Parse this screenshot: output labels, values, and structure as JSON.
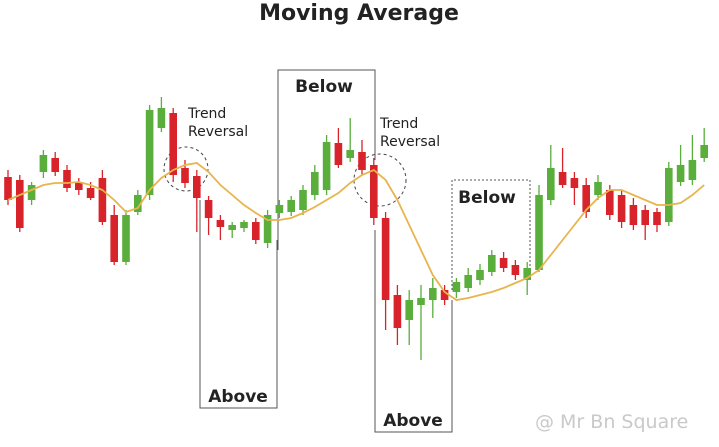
{
  "chart_data": {
    "type": "candlestick",
    "title": "Moving Average",
    "up_color": "#5aae3c",
    "down_color": "#d8232a",
    "open": [
      273,
      270,
      250,
      278,
      292,
      280,
      268,
      262,
      272,
      235,
      188,
      238,
      255,
      322,
      337,
      282,
      274,
      250,
      230,
      220,
      222,
      228,
      207,
      237,
      238,
      240,
      255,
      260,
      307,
      292,
      298,
      285,
      232,
      155,
      130,
      145,
      150,
      160,
      158,
      162,
      170,
      178,
      192,
      185,
      170,
      180,
      250,
      278,
      272,
      265,
      255,
      260,
      255,
      245,
      240,
      238,
      228,
      268,
      270,
      292
    ],
    "close": [
      250,
      222,
      265,
      295,
      278,
      262,
      260,
      252,
      228,
      188,
      235,
      255,
      340,
      342,
      275,
      267,
      252,
      232,
      223,
      225,
      228,
      210,
      235,
      245,
      250,
      260,
      278,
      308,
      285,
      300,
      280,
      232,
      150,
      122,
      150,
      152,
      162,
      150,
      168,
      175,
      180,
      195,
      182,
      175,
      182,
      255,
      282,
      265,
      262,
      238,
      268,
      235,
      228,
      225,
      225,
      225,
      282,
      285,
      290,
      305
    ],
    "high": [
      280,
      275,
      268,
      300,
      298,
      285,
      272,
      268,
      280,
      245,
      240,
      260,
      345,
      353,
      342,
      290,
      280,
      254,
      235,
      228,
      230,
      232,
      240,
      250,
      254,
      265,
      285,
      315,
      322,
      332,
      310,
      292,
      238,
      165,
      160,
      165,
      172,
      165,
      172,
      182,
      186,
      200,
      198,
      190,
      188,
      265,
      305,
      302,
      278,
      272,
      275,
      265,
      260,
      252,
      245,
      242,
      288,
      305,
      315,
      322
    ],
    "low": [
      245,
      218,
      245,
      272,
      274,
      258,
      255,
      250,
      225,
      185,
      185,
      235,
      250,
      318,
      268,
      262,
      218,
      215,
      210,
      212,
      218,
      206,
      202,
      232,
      234,
      235,
      250,
      255,
      282,
      288,
      275,
      225,
      120,
      105,
      105,
      90,
      132,
      145,
      152,
      158,
      165,
      174,
      178,
      170,
      155,
      178,
      245,
      262,
      245,
      232,
      250,
      230,
      222,
      220,
      210,
      218,
      224,
      264,
      265,
      288
    ],
    "moving_average": {
      "color": "#e8b44c",
      "values": [
        250,
        255,
        260,
        265,
        267,
        267,
        268,
        265,
        260,
        250,
        238,
        242,
        260,
        272,
        280,
        285,
        287,
        278,
        265,
        255,
        245,
        237,
        230,
        230,
        232,
        237,
        243,
        250,
        257,
        267,
        275,
        280,
        270,
        250,
        225,
        200,
        175,
        158,
        150,
        152,
        155,
        158,
        162,
        167,
        172,
        180,
        195,
        210,
        225,
        240,
        252,
        260,
        260,
        255,
        250,
        245,
        245,
        247,
        255,
        265
      ]
    },
    "annotations": [
      {
        "lines": [
          "Trend",
          "Reversal"
        ]
      },
      {
        "lines": [
          "Trend",
          "Reversal"
        ]
      }
    ],
    "regions": [
      "Below",
      "Above",
      "Below",
      "Above"
    ],
    "watermark": "@ Mr Bn Square"
  }
}
